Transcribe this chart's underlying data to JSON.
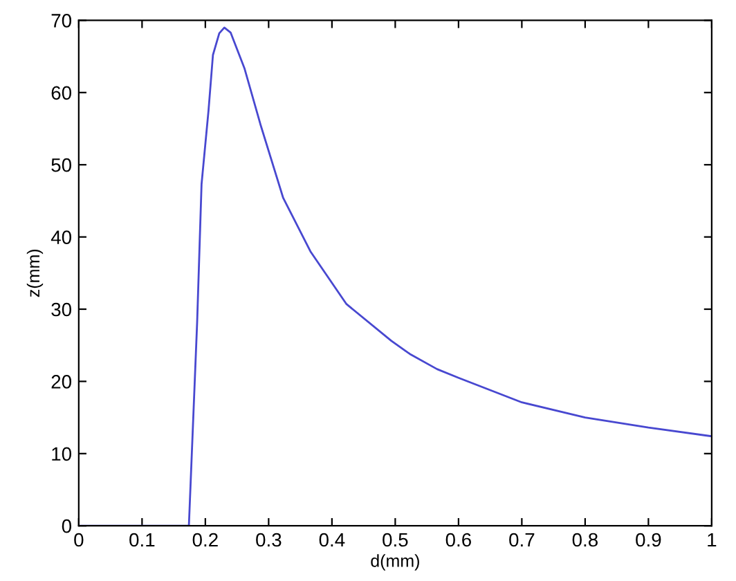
{
  "chart_data": {
    "type": "line",
    "xlabel": "d(mm)",
    "ylabel": "z(mm)",
    "series": [
      {
        "color": "#4848d0",
        "x": [
          0,
          0.174,
          0.187,
          0.194,
          0.205,
          0.212,
          0.222,
          0.23,
          0.24,
          0.262,
          0.287,
          0.323,
          0.366,
          0.423,
          0.494,
          0.523,
          0.566,
          0.6,
          0.7,
          0.8,
          0.9,
          1.0
        ],
        "values": [
          0,
          0,
          28.1,
          47.3,
          57.5,
          65.2,
          68.2,
          69.0,
          68.3,
          63.3,
          55.6,
          45.4,
          38.0,
          30.7,
          25.6,
          23.8,
          21.7,
          20.5,
          17.1,
          15.0,
          13.6,
          12.4
        ]
      }
    ],
    "xlim": [
      0,
      1
    ],
    "ylim": [
      0,
      70
    ],
    "xticks": [
      0,
      0.1,
      0.2,
      0.3,
      0.4,
      0.5,
      0.6,
      0.7,
      0.8,
      0.9,
      1
    ],
    "yticks": [
      0,
      10,
      20,
      30,
      40,
      50,
      60,
      70
    ],
    "grid": false,
    "marker": "none",
    "line_style": "solid"
  }
}
